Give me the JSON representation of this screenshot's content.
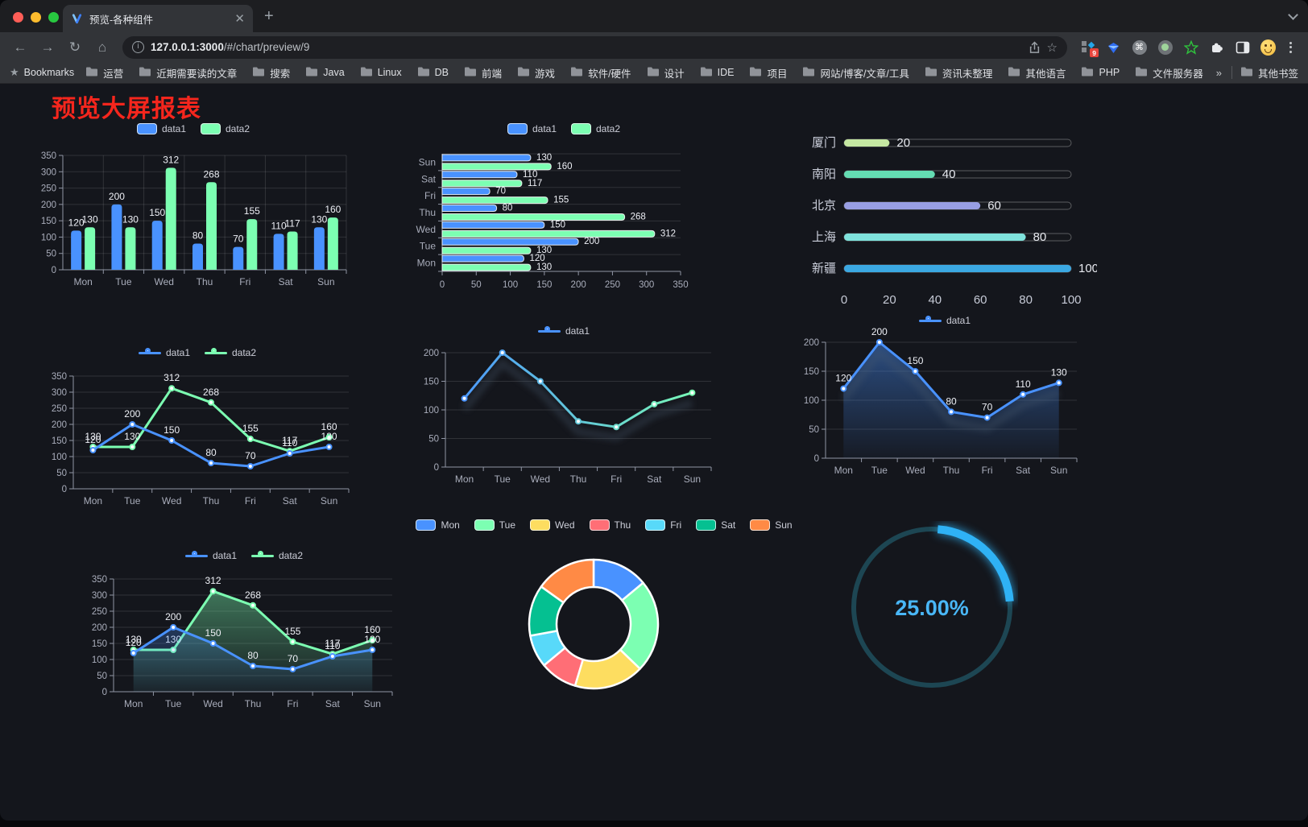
{
  "browser": {
    "tab": {
      "title": "预览-各种组件",
      "close_glyph": "✕",
      "new_tab_glyph": "+"
    },
    "nav": {
      "back": "←",
      "forward": "→",
      "reload": "↻",
      "home": "⌂"
    },
    "url": {
      "host": "127.0.0.1:3000",
      "path": "/#/chart/preview/9"
    },
    "omnibox_icons": [
      "info-icon",
      "share-icon",
      "bookmark-star-icon"
    ],
    "extension_icons": [
      "extensions-grid-icon",
      "gem-icon",
      "command-circle-icon",
      "green-dot-icon",
      "green-star-icon",
      "puzzle-icon",
      "side-panel-icon",
      "avatar-emoji",
      "kebab-menu-icon"
    ],
    "extension_badge": "9",
    "bookmarks_label": "Bookmarks",
    "bookmarks": [
      "运营",
      "近期需要读的文章",
      "搜索",
      "Java",
      "Linux",
      "DB",
      "前端",
      "游戏",
      "软件/硬件",
      "设计",
      "IDE",
      "项目",
      "网站/博客/文章/工具",
      "资讯未整理",
      "其他语言",
      "PHP",
      "文件服务器"
    ],
    "bookmarks_overflow": "»",
    "other_bookmarks": "其他书签"
  },
  "page": {
    "title": "预览大屏报表",
    "title_color": "#f5261d",
    "background": "#14161c"
  },
  "chart_data": [
    {
      "id": "bar-grouped",
      "type": "bar",
      "legend": [
        "data1",
        "data2"
      ],
      "legend_marker": "rect",
      "legend_position": "top-center",
      "categories": [
        "Mon",
        "Tue",
        "Wed",
        "Thu",
        "Fri",
        "Sat",
        "Sun"
      ],
      "series": [
        {
          "name": "data1",
          "color": "#4992ff",
          "values": [
            120,
            200,
            150,
            80,
            70,
            110,
            130
          ]
        },
        {
          "name": "data2",
          "color": "#7cffb2",
          "values": [
            130,
            130,
            312,
            268,
            155,
            117,
            160
          ]
        }
      ],
      "ylim": [
        0,
        350
      ],
      "ytick_step": 50,
      "grid": true,
      "value_labels": true
    },
    {
      "id": "bar-horizontal",
      "type": "bar-horizontal",
      "legend": [
        "data1",
        "data2"
      ],
      "legend_marker": "rect",
      "legend_position": "top-center",
      "categories": [
        "Mon",
        "Tue",
        "Wed",
        "Thu",
        "Fri",
        "Sat",
        "Sun"
      ],
      "series": [
        {
          "name": "data1",
          "color": "#4992ff",
          "values": [
            120,
            200,
            150,
            80,
            70,
            110,
            130
          ]
        },
        {
          "name": "data2",
          "color": "#7cffb2",
          "values": [
            130,
            130,
            312,
            268,
            155,
            117,
            160
          ]
        }
      ],
      "xlim": [
        0,
        350
      ],
      "xtick_step": 50,
      "grid": true,
      "value_labels": true
    },
    {
      "id": "progress-bars",
      "type": "progress",
      "max": 100,
      "xticks": [
        0,
        20,
        40,
        60,
        80,
        100
      ],
      "items": [
        {
          "label": "厦门",
          "value": 20,
          "color": "#c5e8a2"
        },
        {
          "label": "南阳",
          "value": 40,
          "color": "#64dcb2"
        },
        {
          "label": "北京",
          "value": 60,
          "color": "#989ee3"
        },
        {
          "label": "上海",
          "value": 80,
          "color": "#7fe2dc"
        },
        {
          "label": "新疆",
          "value": 100,
          "color": "#3ba8e2"
        }
      ]
    },
    {
      "id": "line-multi",
      "type": "line",
      "legend": [
        "data1",
        "data2"
      ],
      "legend_marker": "line",
      "legend_position": "top-center",
      "categories": [
        "Mon",
        "Tue",
        "Wed",
        "Thu",
        "Fri",
        "Sat",
        "Sun"
      ],
      "series": [
        {
          "name": "data1",
          "color": "#4992ff",
          "values": [
            120,
            200,
            150,
            80,
            70,
            110,
            130
          ]
        },
        {
          "name": "data2",
          "color": "#7cffb2",
          "values": [
            130,
            130,
            312,
            268,
            155,
            117,
            160
          ]
        }
      ],
      "ylim": [
        0,
        350
      ],
      "ytick_step": 50,
      "grid": true,
      "value_labels": true
    },
    {
      "id": "line-gradient",
      "type": "line",
      "legend": [
        "data1"
      ],
      "legend_marker": "line",
      "legend_position": "top-center",
      "categories": [
        "Mon",
        "Tue",
        "Wed",
        "Thu",
        "Fri",
        "Sat",
        "Sun"
      ],
      "series": [
        {
          "name": "data1",
          "gradient": [
            "#4992ff",
            "#7cffb2"
          ],
          "values": [
            120,
            200,
            150,
            80,
            70,
            110,
            130
          ]
        }
      ],
      "ylim": [
        0,
        200
      ],
      "ytick_step": 50,
      "grid": true,
      "value_labels": false,
      "shadow": true
    },
    {
      "id": "area-single",
      "type": "area",
      "legend": [
        "data1"
      ],
      "legend_marker": "line",
      "legend_position": "top-center",
      "categories": [
        "Mon",
        "Tue",
        "Wed",
        "Thu",
        "Fri",
        "Sat",
        "Sun"
      ],
      "series": [
        {
          "name": "data1",
          "color": "#4992ff",
          "values": [
            120,
            200,
            150,
            80,
            70,
            110,
            130
          ]
        }
      ],
      "ylim": [
        0,
        200
      ],
      "ytick_step": 50,
      "grid": true,
      "value_labels": true,
      "shadow": true
    },
    {
      "id": "area-multi",
      "type": "area",
      "legend": [
        "data1",
        "data2"
      ],
      "legend_marker": "line",
      "legend_position": "top-center",
      "categories": [
        "Mon",
        "Tue",
        "Wed",
        "Thu",
        "Fri",
        "Sat",
        "Sun"
      ],
      "series": [
        {
          "name": "data1",
          "color": "#4992ff",
          "values": [
            120,
            200,
            150,
            80,
            70,
            110,
            130
          ]
        },
        {
          "name": "data2",
          "color": "#7cffb2",
          "values": [
            130,
            130,
            312,
            268,
            155,
            117,
            160
          ]
        }
      ],
      "ylim": [
        0,
        350
      ],
      "ytick_step": 50,
      "grid": true,
      "value_labels": true
    },
    {
      "id": "donut",
      "type": "pie",
      "legend": [
        "Mon",
        "Tue",
        "Wed",
        "Thu",
        "Fri",
        "Sat",
        "Sun"
      ],
      "legend_marker": "rect",
      "legend_position": "top-center",
      "items": [
        {
          "label": "Mon",
          "value": 120,
          "color": "#4992ff"
        },
        {
          "label": "Tue",
          "value": 200,
          "color": "#7cffb2"
        },
        {
          "label": "Wed",
          "value": 150,
          "color": "#fddd60"
        },
        {
          "label": "Thu",
          "value": 80,
          "color": "#ff6e76"
        },
        {
          "label": "Fri",
          "value": 70,
          "color": "#58d9f9"
        },
        {
          "label": "Sat",
          "value": 110,
          "color": "#05c091"
        },
        {
          "label": "Sun",
          "value": 130,
          "color": "#ff8a45"
        }
      ]
    },
    {
      "id": "gauge",
      "type": "gauge",
      "value": 25,
      "max": 100,
      "display": "25.00%",
      "color": "#2fb2f5",
      "track_color": "#1d4653",
      "text_color": "#49b7f7"
    }
  ]
}
